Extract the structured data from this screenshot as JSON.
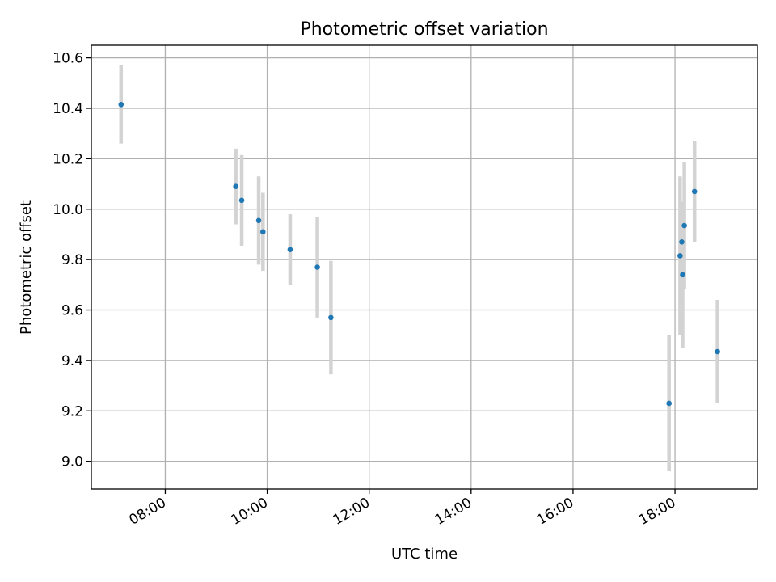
{
  "chart_data": {
    "type": "scatter",
    "title": "Photometric offset variation",
    "xlabel": "UTC time",
    "ylabel": "Photometric offset",
    "x_axis_type": "time",
    "x_ticks": [
      "08:00",
      "10:00",
      "12:00",
      "14:00",
      "16:00",
      "18:00"
    ],
    "y_ticks": [
      "9.0",
      "9.2",
      "9.4",
      "9.6",
      "9.8",
      "10.0",
      "10.2",
      "10.4",
      "10.6"
    ],
    "xlim": [
      "06:33",
      "19:37"
    ],
    "ylim": [
      8.89,
      10.65
    ],
    "grid": true,
    "marker_color": "#1f77b4",
    "errorbar_color": "#d3d3d3",
    "points": [
      {
        "x": "07:08",
        "y": 10.415,
        "err": 0.155
      },
      {
        "x": "09:23",
        "y": 10.09,
        "err": 0.15
      },
      {
        "x": "09:30",
        "y": 10.035,
        "err": 0.18
      },
      {
        "x": "09:50",
        "y": 9.955,
        "err": 0.175
      },
      {
        "x": "09:55",
        "y": 9.91,
        "err": 0.155
      },
      {
        "x": "10:27",
        "y": 9.84,
        "err": 0.14
      },
      {
        "x": "10:59",
        "y": 9.77,
        "err": 0.2
      },
      {
        "x": "11:15",
        "y": 9.57,
        "err": 0.225
      },
      {
        "x": "17:53",
        "y": 9.23,
        "err": 0.27
      },
      {
        "x": "18:06",
        "y": 9.815,
        "err": 0.315
      },
      {
        "x": "18:08",
        "y": 9.87,
        "err": 0.16
      },
      {
        "x": "18:09",
        "y": 9.74,
        "err": 0.29
      },
      {
        "x": "18:11",
        "y": 9.935,
        "err": 0.25
      },
      {
        "x": "18:23",
        "y": 10.07,
        "err": 0.2
      },
      {
        "x": "18:50",
        "y": 9.435,
        "err": 0.205
      }
    ]
  }
}
